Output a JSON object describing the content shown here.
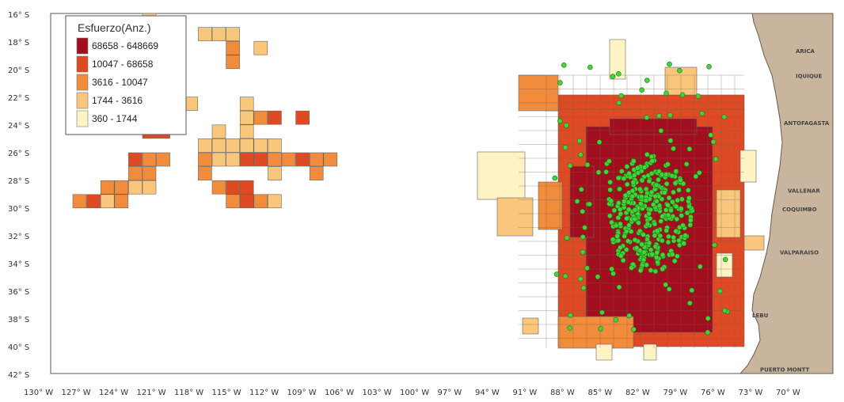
{
  "legend": {
    "title": "Esfuerzo(Anz.)",
    "classes": [
      {
        "label": "68658 - 648669",
        "color": "#a10f1f"
      },
      {
        "label": "10047 - 68658",
        "color": "#dd4a23"
      },
      {
        "label": "3616 - 10047",
        "color": "#f08c3c"
      },
      {
        "label": "1744 - 3616",
        "color": "#f9c77b"
      },
      {
        "label": "360 - 1744",
        "color": "#fdf3c4"
      }
    ]
  },
  "colors": {
    "land": "#c9b49e",
    "coast_line": "#6b5a4a",
    "frame": "#555555",
    "cell_border": "#666666",
    "point": "#43d43b",
    "point_border": "#1e7a18"
  },
  "y_ticks": [
    "16° S",
    "18° S",
    "20° S",
    "22° S",
    "24° S",
    "26° S",
    "28° S",
    "30° S",
    "32° S",
    "34° S",
    "36° S",
    "38° S",
    "40° S",
    "42° S"
  ],
  "x_ticks": [
    "130° W",
    "127° W",
    "124° W",
    "121° W",
    "118° W",
    "115° W",
    "112° W",
    "109° W",
    "106° W",
    "103° W",
    "100° W",
    "97° W",
    "94° W",
    "91° W",
    "88° W",
    "85° W",
    "82° W",
    "79° W",
    "76° W",
    "73° W",
    "70° W"
  ],
  "cities": [
    {
      "name": "ARICA",
      "lat": -18.5
    },
    {
      "name": "IQUIQUE",
      "lat": -20.3
    },
    {
      "name": "ANTOFAGASTA",
      "lat": -23.7
    },
    {
      "name": "VALLENAR",
      "lat": -28.6
    },
    {
      "name": "COQUIMBO",
      "lat": -29.95
    },
    {
      "name": "VALPARAISO",
      "lat": -33.05
    },
    {
      "name": "LEBU",
      "lat": -37.6
    },
    {
      "name": "PUERTO MONTT",
      "lat": -41.5
    }
  ],
  "effort_cells": [
    {
      "col": 5,
      "row": 0,
      "v": 1
    },
    {
      "col": 9,
      "row": 1,
      "v": 1
    },
    {
      "col": 10,
      "row": 1,
      "v": 1
    },
    {
      "col": 11,
      "row": 1,
      "v": 1
    },
    {
      "col": 11,
      "row": 2,
      "v": 2
    },
    {
      "col": 13,
      "row": 2,
      "v": 1
    },
    {
      "col": 11,
      "row": 3,
      "v": 2
    },
    {
      "col": 6,
      "row": 5,
      "v": 2
    },
    {
      "col": 7,
      "row": 5,
      "v": 2
    },
    {
      "col": 7,
      "row": 6,
      "v": 2
    },
    {
      "col": 8,
      "row": 6,
      "v": 1
    },
    {
      "col": 4,
      "row": 7,
      "v": 2
    },
    {
      "col": 5,
      "row": 7,
      "v": 2
    },
    {
      "col": 5,
      "row": 8,
      "v": 3
    },
    {
      "col": 6,
      "row": 8,
      "v": 3
    },
    {
      "col": 12,
      "row": 6,
      "v": 1
    },
    {
      "col": 13,
      "row": 7,
      "v": 2
    },
    {
      "col": 14,
      "row": 7,
      "v": 3
    },
    {
      "col": 12,
      "row": 7,
      "v": 1
    },
    {
      "col": 10,
      "row": 8,
      "v": 1
    },
    {
      "col": 12,
      "row": 8,
      "v": 1
    },
    {
      "col": 16,
      "row": 7,
      "v": 3
    },
    {
      "col": 9,
      "row": 9,
      "v": 1
    },
    {
      "col": 10,
      "row": 9,
      "v": 1
    },
    {
      "col": 11,
      "row": 9,
      "v": 1
    },
    {
      "col": 12,
      "row": 9,
      "v": 1
    },
    {
      "col": 13,
      "row": 9,
      "v": 1
    },
    {
      "col": 14,
      "row": 9,
      "v": 1
    },
    {
      "col": 4,
      "row": 10,
      "v": 3
    },
    {
      "col": 5,
      "row": 10,
      "v": 2
    },
    {
      "col": 6,
      "row": 10,
      "v": 2
    },
    {
      "col": 9,
      "row": 10,
      "v": 2
    },
    {
      "col": 10,
      "row": 10,
      "v": 1
    },
    {
      "col": 11,
      "row": 10,
      "v": 1
    },
    {
      "col": 12,
      "row": 10,
      "v": 3
    },
    {
      "col": 13,
      "row": 10,
      "v": 3
    },
    {
      "col": 14,
      "row": 10,
      "v": 2
    },
    {
      "col": 15,
      "row": 10,
      "v": 2
    },
    {
      "col": 16,
      "row": 10,
      "v": 3
    },
    {
      "col": 17,
      "row": 10,
      "v": 2
    },
    {
      "col": 18,
      "row": 10,
      "v": 2
    },
    {
      "col": 4,
      "row": 11,
      "v": 2
    },
    {
      "col": 5,
      "row": 11,
      "v": 2
    },
    {
      "col": 9,
      "row": 11,
      "v": 2
    },
    {
      "col": 14,
      "row": 11,
      "v": 1
    },
    {
      "col": 17,
      "row": 11,
      "v": 2
    },
    {
      "col": 2,
      "row": 12,
      "v": 2
    },
    {
      "col": 3,
      "row": 12,
      "v": 2
    },
    {
      "col": 4,
      "row": 12,
      "v": 1
    },
    {
      "col": 5,
      "row": 12,
      "v": 1
    },
    {
      "col": 10,
      "row": 12,
      "v": 2
    },
    {
      "col": 11,
      "row": 12,
      "v": 3
    },
    {
      "col": 12,
      "row": 12,
      "v": 3
    },
    {
      "col": 0,
      "row": 13,
      "v": 2
    },
    {
      "col": 1,
      "row": 13,
      "v": 3
    },
    {
      "col": 2,
      "row": 13,
      "v": 1
    },
    {
      "col": 3,
      "row": 13,
      "v": 2
    },
    {
      "col": 11,
      "row": 13,
      "v": 2
    },
    {
      "col": 12,
      "row": 13,
      "v": 3
    },
    {
      "col": 13,
      "row": 13,
      "v": 2
    },
    {
      "col": 14,
      "row": 13,
      "v": 1
    }
  ],
  "chart_data": {
    "type": "map",
    "lat_range": [
      -42,
      -16
    ],
    "lon_range": [
      -130,
      -68
    ],
    "cell_size_deg": 1
  }
}
